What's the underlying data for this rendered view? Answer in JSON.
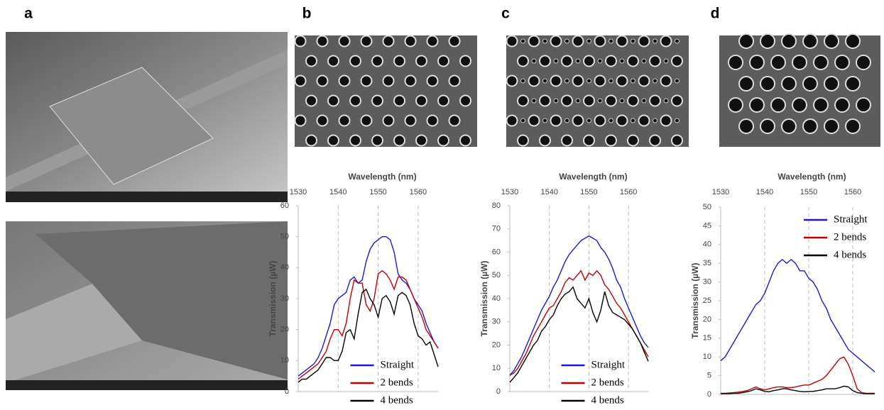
{
  "panels": [
    "a",
    "b",
    "c",
    "d"
  ],
  "chart_data": [
    {
      "type": "line",
      "x_label": "Wavelength (nm)",
      "y_label": "Transmission (µW)",
      "x": [
        1530,
        1531,
        1532,
        1533,
        1534,
        1535,
        1536,
        1537,
        1538,
        1539,
        1540,
        1541,
        1542,
        1543,
        1544,
        1545,
        1546,
        1547,
        1548,
        1549,
        1550,
        1551,
        1552,
        1553,
        1554,
        1555,
        1556,
        1557,
        1558,
        1559,
        1560,
        1561,
        1562,
        1563,
        1564,
        1565
      ],
      "xlim": [
        1530,
        1565
      ],
      "xticks": [
        1530,
        1540,
        1550,
        1560
      ],
      "ylim": [
        0,
        60
      ],
      "yticks": [
        0,
        10,
        20,
        30,
        40,
        50,
        60
      ],
      "grid": "x",
      "legend": "lower center",
      "series": [
        {
          "name": "Straight",
          "color": "#1a1ad6",
          "values": [
            5,
            6,
            7,
            8,
            9,
            11,
            14,
            18,
            22,
            28,
            30,
            31,
            32,
            36,
            37,
            35,
            36,
            42,
            46,
            48,
            49,
            50,
            50,
            49,
            45,
            38,
            36,
            35,
            33,
            30,
            28,
            26,
            22,
            19,
            16,
            14
          ]
        },
        {
          "name": "2 bends",
          "color": "#c00000",
          "values": [
            4,
            5,
            6,
            7,
            8,
            9,
            11,
            13,
            17,
            20,
            20,
            18,
            22,
            30,
            36,
            35,
            35,
            28,
            26,
            30,
            38,
            39,
            38,
            36,
            33,
            37,
            37,
            36,
            33,
            30,
            27,
            24,
            20,
            18,
            16,
            14
          ]
        },
        {
          "name": "4 bends",
          "color": "#000000",
          "values": [
            3,
            4,
            4,
            5,
            6,
            7,
            9,
            11,
            11,
            10,
            10,
            13,
            19,
            20,
            17,
            25,
            32,
            33,
            30,
            28,
            24,
            30,
            31,
            29,
            25,
            31,
            32,
            31,
            28,
            22,
            18,
            17,
            15,
            16,
            12,
            8
          ]
        }
      ]
    },
    {
      "type": "line",
      "x_label": "Wavelength (nm)",
      "y_label": "Transmission (µW)",
      "x": [
        1530,
        1531,
        1532,
        1533,
        1534,
        1535,
        1536,
        1537,
        1538,
        1539,
        1540,
        1541,
        1542,
        1543,
        1544,
        1545,
        1546,
        1547,
        1548,
        1549,
        1550,
        1551,
        1552,
        1553,
        1554,
        1555,
        1556,
        1557,
        1558,
        1559,
        1560,
        1561,
        1562,
        1563,
        1564,
        1565
      ],
      "xlim": [
        1530,
        1565
      ],
      "xticks": [
        1530,
        1540,
        1550,
        1560
      ],
      "ylim": [
        0,
        80
      ],
      "yticks": [
        0,
        10,
        20,
        30,
        40,
        50,
        60,
        70,
        80
      ],
      "grid": "x",
      "legend": "lower center",
      "series": [
        {
          "name": "Straight",
          "color": "#1a1ad6",
          "values": [
            7,
            9,
            12,
            15,
            19,
            23,
            27,
            31,
            35,
            38,
            41,
            45,
            48,
            52,
            56,
            59,
            61,
            63,
            65,
            66,
            67,
            66,
            65,
            62,
            60,
            57,
            53,
            48,
            45,
            40,
            36,
            32,
            28,
            24,
            21,
            19
          ]
        },
        {
          "name": "2 bends",
          "color": "#c00000",
          "values": [
            7,
            8,
            10,
            13,
            16,
            20,
            24,
            27,
            30,
            33,
            36,
            37,
            40,
            43,
            47,
            49,
            48,
            50,
            52,
            48,
            51,
            50,
            52,
            50,
            46,
            44,
            41,
            38,
            36,
            33,
            30,
            27,
            24,
            21,
            18,
            15
          ]
        },
        {
          "name": "4 bends",
          "color": "#000000",
          "values": [
            4,
            6,
            8,
            11,
            14,
            17,
            20,
            22,
            26,
            28,
            31,
            33,
            37,
            40,
            42,
            43,
            45,
            40,
            38,
            36,
            40,
            34,
            30,
            35,
            43,
            37,
            34,
            33,
            32,
            31,
            29,
            27,
            24,
            21,
            17,
            13
          ]
        }
      ]
    },
    {
      "type": "line",
      "x_label": "Wavelength (nm)",
      "y_label": "Transmission (µW)",
      "x": [
        1530,
        1531,
        1532,
        1533,
        1534,
        1535,
        1536,
        1537,
        1538,
        1539,
        1540,
        1541,
        1542,
        1543,
        1544,
        1545,
        1546,
        1547,
        1548,
        1549,
        1550,
        1551,
        1552,
        1553,
        1554,
        1555,
        1556,
        1557,
        1558,
        1559,
        1560,
        1561,
        1562,
        1563,
        1564,
        1565
      ],
      "xlim": [
        1530,
        1565
      ],
      "xticks": [
        1530,
        1540,
        1550,
        1560
      ],
      "ylim": [
        0,
        50
      ],
      "yticks": [
        0,
        5,
        10,
        15,
        20,
        25,
        30,
        35,
        40,
        45,
        50
      ],
      "grid": "x",
      "legend": "upper right",
      "series": [
        {
          "name": "Straight",
          "color": "#1a1ad6",
          "values": [
            9,
            10,
            12,
            14,
            16,
            18,
            20,
            22,
            24,
            25,
            27,
            30,
            33,
            35,
            36,
            35,
            36,
            35,
            33,
            33,
            31,
            30,
            28,
            25,
            23,
            20,
            18,
            16,
            14,
            12,
            11,
            10,
            9,
            8,
            7,
            6
          ]
        },
        {
          "name": "2 bends",
          "color": "#c00000",
          "values": [
            0.3,
            0.3,
            0.4,
            0.5,
            0.6,
            0.8,
            1,
            1.5,
            2,
            1.5,
            1.2,
            1.5,
            1.8,
            2,
            2,
            1.8,
            1.8,
            2,
            2.3,
            2.5,
            2.5,
            3,
            3.5,
            4,
            5,
            6.5,
            8,
            9.5,
            10,
            8,
            5,
            1.5,
            0.5,
            0.3,
            0.3,
            0.3
          ]
        },
        {
          "name": "4 bends",
          "color": "#000000",
          "values": [
            0.2,
            0.2,
            0.2,
            0.3,
            0.3,
            0.5,
            0.7,
            1,
            1.5,
            1.2,
            0.8,
            0.7,
            1,
            1.2,
            1.5,
            1.5,
            1.2,
            1,
            0.8,
            0.7,
            0.8,
            0.8,
            1,
            1.2,
            1.5,
            1.5,
            1.5,
            1.8,
            2.2,
            2,
            1,
            0.5,
            0.3,
            0.2,
            0.2,
            0.2
          ]
        }
      ]
    }
  ]
}
